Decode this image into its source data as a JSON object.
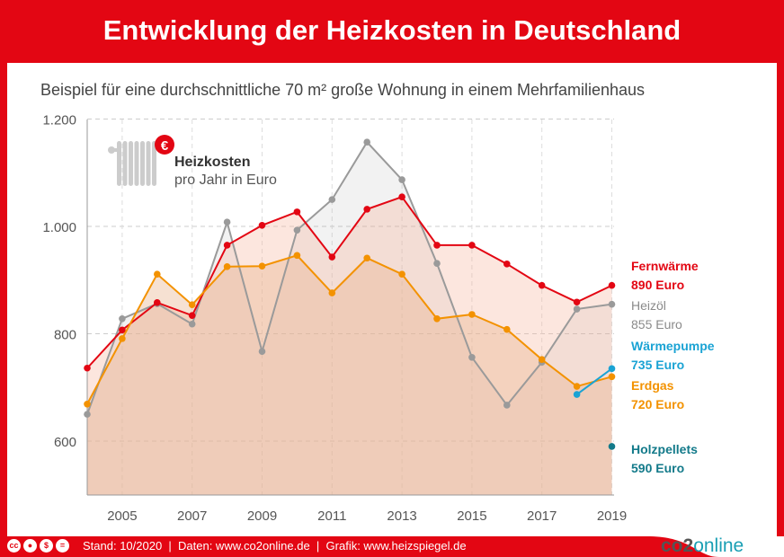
{
  "title": "Entwicklung der Heizkosten in Deutschland",
  "subtitle": "Beispiel für eine durchschnittliche 70 m² große Wohnung in einem Mehrfamilienhaus",
  "legend_box": {
    "title": "Heizkosten",
    "subtitle": "pro Jahr in Euro",
    "icon": "radiator-euro-icon"
  },
  "footer": {
    "license_icons": [
      "cc",
      "by",
      "nc",
      "nd"
    ],
    "text": "Stand: 10/2020  |  Daten: www.co2online.de  |  Grafik: www.heizspiegel.de",
    "logo_a": "co2",
    "logo_b": "online"
  },
  "colors": {
    "brand": "#e30613",
    "fernwaerme": "#e30613",
    "heizoel": "#9a9a9a",
    "erdgas": "#f39200",
    "waermepumpe": "#1aa3d4",
    "holzpellets": "#137a8a"
  },
  "chart_data": {
    "type": "line",
    "x": [
      2004,
      2005,
      2006,
      2007,
      2008,
      2009,
      2010,
      2011,
      2012,
      2013,
      2014,
      2015,
      2016,
      2017,
      2018,
      2019
    ],
    "xticks": [
      "2005",
      "2007",
      "2009",
      "2011",
      "2013",
      "2015",
      "2017",
      "2019"
    ],
    "yticks": [
      "600",
      "800",
      "1.000",
      "1.200"
    ],
    "ylim": [
      500,
      1200
    ],
    "grid": true,
    "series": [
      {
        "key": "heizoel",
        "name": "Heizöl",
        "end_label": "855 Euro",
        "values": [
          650,
          828,
          856,
          818,
          1008,
          767,
          993,
          1050,
          1157,
          1087,
          931,
          756,
          667,
          747,
          846,
          855
        ]
      },
      {
        "key": "fernwaerme",
        "name": "Fernwärme",
        "end_label": "890 Euro",
        "values": [
          736,
          807,
          858,
          834,
          965,
          1002,
          1027,
          943,
          1032,
          1055,
          965,
          965,
          930,
          890,
          859,
          890
        ]
      },
      {
        "key": "erdgas",
        "name": "Erdgas",
        "end_label": "720 Euro",
        "values": [
          669,
          791,
          911,
          854,
          925,
          926,
          946,
          876,
          941,
          911,
          828,
          836,
          808,
          752,
          702,
          720
        ]
      },
      {
        "key": "waermepumpe",
        "name": "Wärmepumpe",
        "end_label": "735 Euro",
        "values": [
          null,
          null,
          null,
          null,
          null,
          null,
          null,
          null,
          null,
          null,
          null,
          null,
          null,
          null,
          687,
          735
        ]
      },
      {
        "key": "holzpellets",
        "name": "Holzpellets",
        "end_label": "590 Euro",
        "values": [
          null,
          null,
          null,
          null,
          null,
          null,
          null,
          null,
          null,
          null,
          null,
          null,
          null,
          null,
          null,
          590
        ]
      }
    ]
  }
}
